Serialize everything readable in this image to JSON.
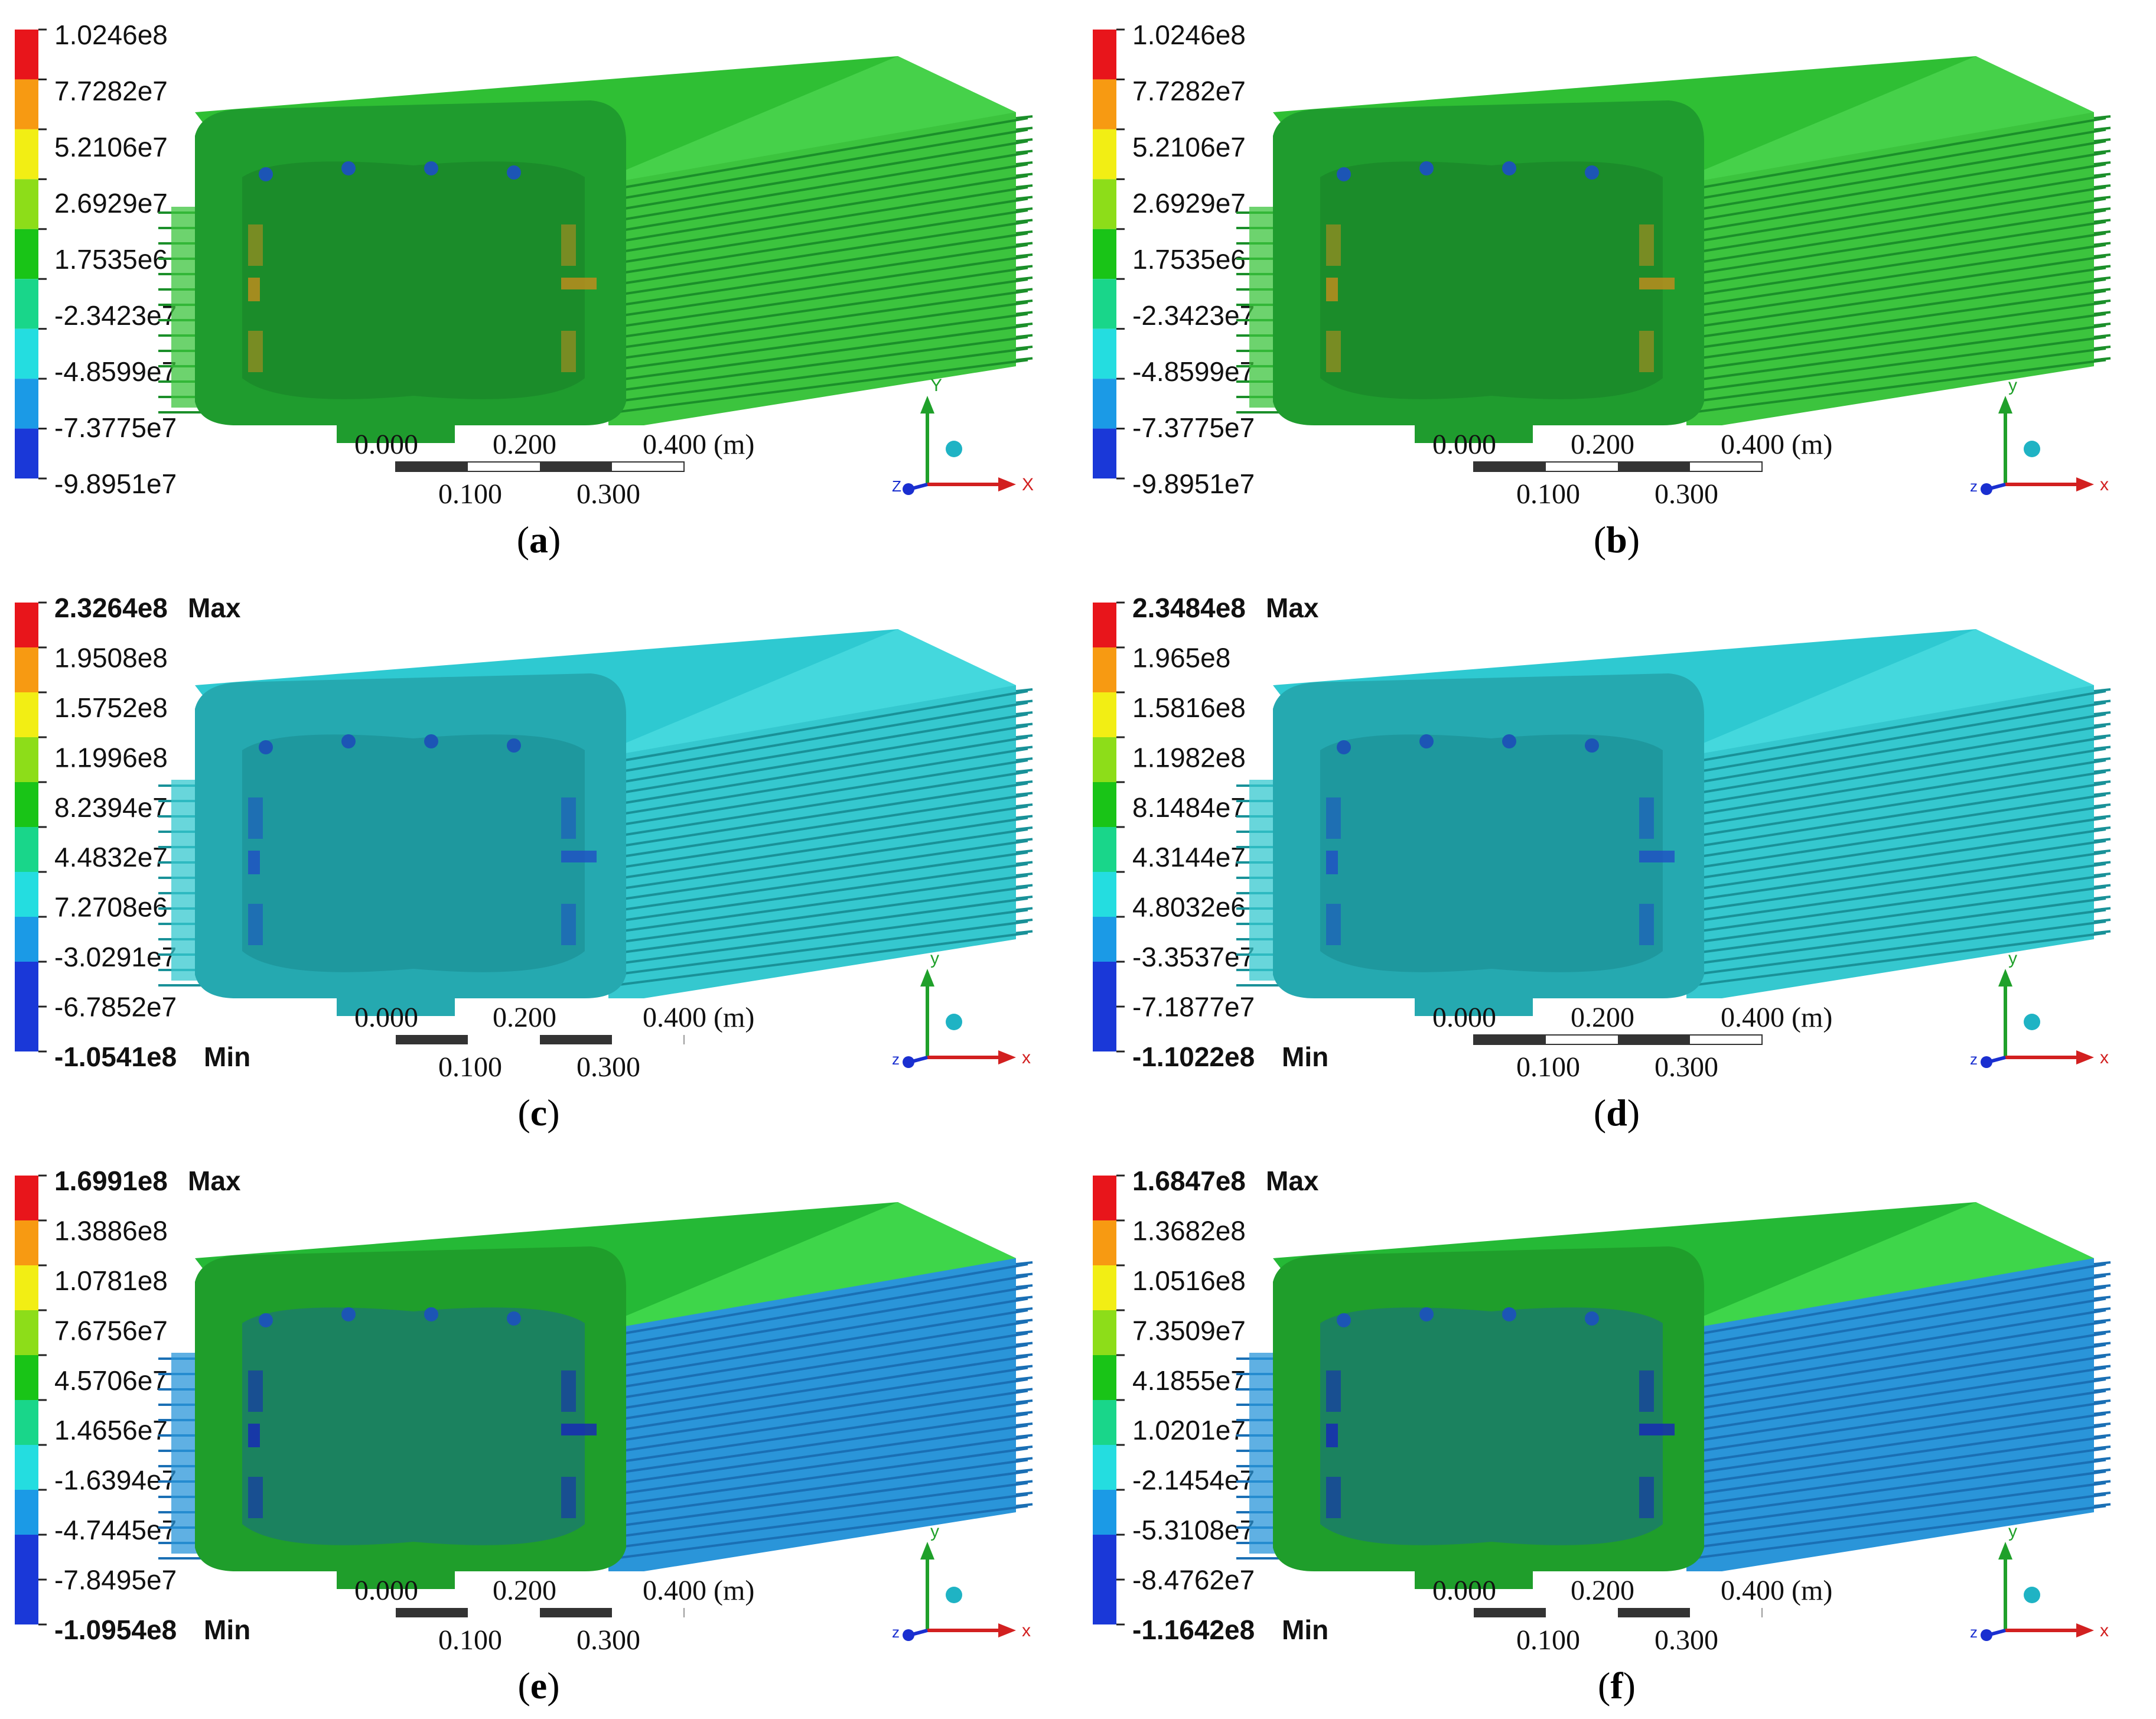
{
  "panels": [
    {
      "caption_letter": "a",
      "legend": [
        "1.0246e8",
        "7.7282e7",
        "5.2106e7",
        "2.6929e7",
        "1.7535e6",
        "-2.3423e7",
        "-4.8599e7",
        "-7.3775e7",
        "-9.8951e7"
      ],
      "max_label": "",
      "min_label": "",
      "scheme": "green",
      "triad_labels": {
        "y": "Y",
        "x": "X",
        "z": "Z"
      },
      "scale_style": "bar"
    },
    {
      "caption_letter": "b",
      "legend": [
        "1.0246e8",
        "7.7282e7",
        "5.2106e7",
        "2.6929e7",
        "1.7535e6",
        "-2.3423e7",
        "-4.8599e7",
        "-7.3775e7",
        "-9.8951e7"
      ],
      "max_label": "",
      "min_label": "",
      "scheme": "green",
      "triad_labels": {
        "y": "y",
        "x": "x",
        "z": "z"
      },
      "scale_style": "bar"
    },
    {
      "caption_letter": "c",
      "legend": [
        "2.3264e8",
        "1.9508e8",
        "1.5752e8",
        "1.1996e8",
        "8.2394e7",
        "4.4832e7",
        "7.2708e6",
        "-3.0291e7",
        "-6.7852e7",
        "-1.0541e8"
      ],
      "max_label": "Max",
      "min_label": "Min",
      "scheme": "cyan",
      "triad_labels": {
        "y": "y",
        "x": "x",
        "z": "z"
      },
      "scale_style": "dash"
    },
    {
      "caption_letter": "d",
      "legend": [
        "2.3484e8",
        "1.965e8",
        "1.5816e8",
        "1.1982e8",
        "8.1484e7",
        "4.3144e7",
        "4.8032e6",
        "-3.3537e7",
        "-7.1877e7",
        "-1.1022e8"
      ],
      "max_label": "Max",
      "min_label": "Min",
      "scheme": "cyan",
      "triad_labels": {
        "y": "y",
        "x": "x",
        "z": "z"
      },
      "scale_style": "bar"
    },
    {
      "caption_letter": "e",
      "legend": [
        "1.6991e8",
        "1.3886e8",
        "1.0781e8",
        "7.6756e7",
        "4.5706e7",
        "1.4656e7",
        "-1.6394e7",
        "-4.7445e7",
        "-7.8495e7",
        "-1.0954e8"
      ],
      "max_label": "Max",
      "min_label": "Min",
      "scheme": "blue",
      "triad_labels": {
        "y": "y",
        "x": "x",
        "z": "z"
      },
      "scale_style": "dash"
    },
    {
      "caption_letter": "f",
      "legend": [
        "1.6847e8",
        "1.3682e8",
        "1.0516e8",
        "7.3509e7",
        "4.1855e7",
        "1.0201e7",
        "-2.1454e7",
        "-5.3108e7",
        "-8.4762e7",
        "-1.1642e8"
      ],
      "max_label": "Max",
      "min_label": "Min",
      "scheme": "blue",
      "triad_labels": {
        "y": "y",
        "x": "x",
        "z": "z"
      },
      "scale_style": "dash"
    }
  ],
  "scale_labels": {
    "s0": "0.000",
    "s1": "0.100",
    "s2": "0.200",
    "s3": "0.300",
    "s4": "0.400 (m)"
  },
  "legend_colors": [
    "#e8151b",
    "#f79a12",
    "#f2ee14",
    "#8ddd19",
    "#19c417",
    "#19d68a",
    "#24dde0",
    "#1b9ae6",
    "#1a38d8"
  ],
  "legend_colors_10": [
    "#e8151b",
    "#f79a12",
    "#f2ee14",
    "#8ddd19",
    "#19c417",
    "#19d68a",
    "#24dde0",
    "#1b9ae6",
    "#1a38d8",
    "#1a38d8"
  ],
  "schemes": {
    "green": {
      "top": "#2fbf34",
      "top_hi": "#46d14a",
      "face": "#1f9c2e",
      "fin": "#3cc43e",
      "fin_line": "#1b8f2a",
      "shadow": "#167a25",
      "accent": "#c58c1d"
    },
    "cyan": {
      "top": "#2ec9d1",
      "top_hi": "#44d8dd",
      "face": "#25a9b0",
      "fin": "#35c8cf",
      "fin_line": "#199198",
      "shadow": "#17828a",
      "accent": "#1f4fc4"
    },
    "blue": {
      "top": "#25b936",
      "top_hi": "#3ed64a",
      "face": "#1f9e2b",
      "fin": "#2a95d9",
      "fin_line": "#1a6fb4",
      "shadow": "#165fa0",
      "accent": "#1626b9"
    }
  }
}
